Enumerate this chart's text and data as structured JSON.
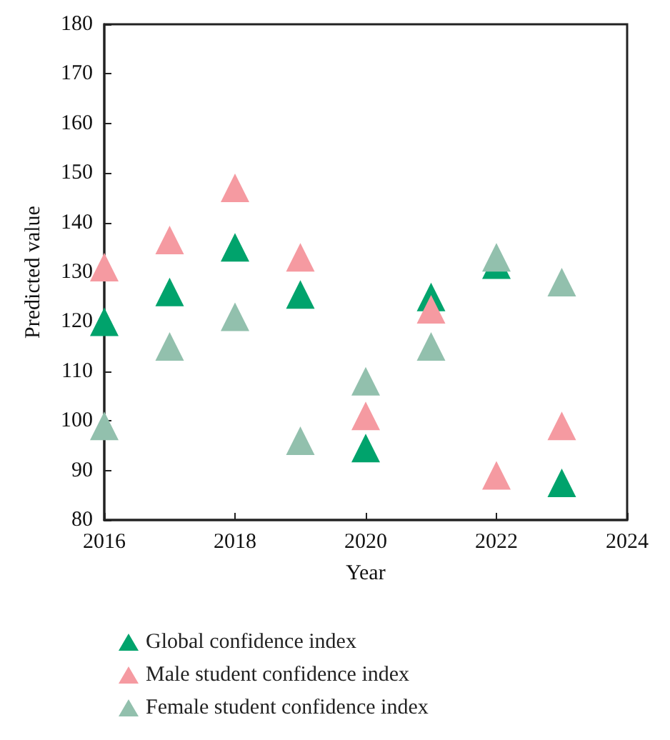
{
  "chart_data": {
    "type": "scatter",
    "xlabel": "Year",
    "ylabel": "Predicted value",
    "x": [
      2016,
      2017,
      2018,
      2019,
      2020,
      2021,
      2022,
      2023
    ],
    "xlim": [
      2016,
      2024
    ],
    "xticks": [
      2016,
      2018,
      2020,
      2022,
      2024
    ],
    "ylim": [
      80,
      180
    ],
    "yticks": [
      80,
      90,
      100,
      110,
      120,
      130,
      140,
      150,
      160,
      170,
      180
    ],
    "marker": "triangle",
    "grid": false,
    "legend": "bottom left",
    "series": [
      {
        "name": "Global confidence index",
        "color": "#00a36c",
        "values": [
          120,
          126,
          135,
          125.5,
          94.5,
          125,
          131.5,
          87.5
        ]
      },
      {
        "name": "Male student confidence index",
        "color": "#f59aa1",
        "values": [
          131,
          136.5,
          147,
          133,
          101,
          122.5,
          89,
          99
        ]
      },
      {
        "name": "Female student confidence index",
        "color": "#92c0ad",
        "values": [
          99,
          115,
          121,
          96,
          108,
          115,
          133,
          128
        ]
      }
    ]
  }
}
